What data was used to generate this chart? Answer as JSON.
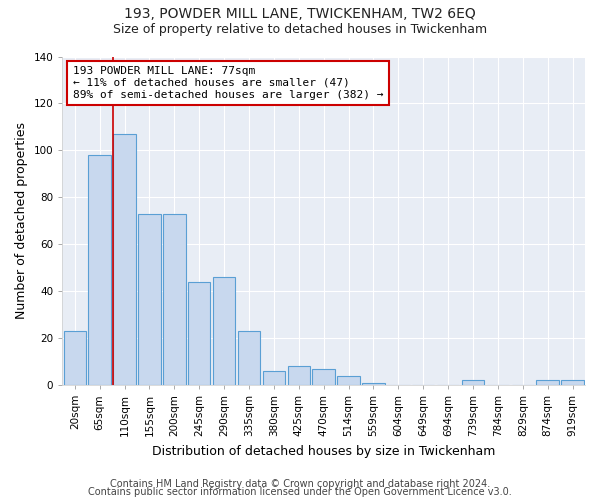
{
  "title1": "193, POWDER MILL LANE, TWICKENHAM, TW2 6EQ",
  "title2": "Size of property relative to detached houses in Twickenham",
  "xlabel": "Distribution of detached houses by size in Twickenham",
  "ylabel": "Number of detached properties",
  "categories": [
    "20sqm",
    "65sqm",
    "110sqm",
    "155sqm",
    "200sqm",
    "245sqm",
    "290sqm",
    "335sqm",
    "380sqm",
    "425sqm",
    "470sqm",
    "514sqm",
    "559sqm",
    "604sqm",
    "649sqm",
    "694sqm",
    "739sqm",
    "784sqm",
    "829sqm",
    "874sqm",
    "919sqm"
  ],
  "values": [
    23,
    98,
    107,
    73,
    73,
    44,
    46,
    23,
    6,
    8,
    7,
    4,
    1,
    0,
    0,
    0,
    2,
    0,
    0,
    2,
    2
  ],
  "bar_color": "#c8d8ee",
  "bar_edge_color": "#5a9fd4",
  "property_line_x": 1.55,
  "annotation_line1": "193 POWDER MILL LANE: 77sqm",
  "annotation_line2": "← 11% of detached houses are smaller (47)",
  "annotation_line3": "89% of semi-detached houses are larger (382) →",
  "annotation_box_color": "#ffffff",
  "annotation_border_color": "#cc0000",
  "property_line_color": "#cc0000",
  "ylim": [
    0,
    140
  ],
  "yticks": [
    0,
    20,
    40,
    60,
    80,
    100,
    120,
    140
  ],
  "footer1": "Contains HM Land Registry data © Crown copyright and database right 2024.",
  "footer2": "Contains public sector information licensed under the Open Government Licence v3.0.",
  "bg_color": "#ffffff",
  "plot_bg_color": "#e8edf5",
  "title_fontsize": 10,
  "subtitle_fontsize": 9,
  "axis_label_fontsize": 9,
  "tick_fontsize": 7.5,
  "footer_fontsize": 7,
  "annot_fontsize": 8
}
